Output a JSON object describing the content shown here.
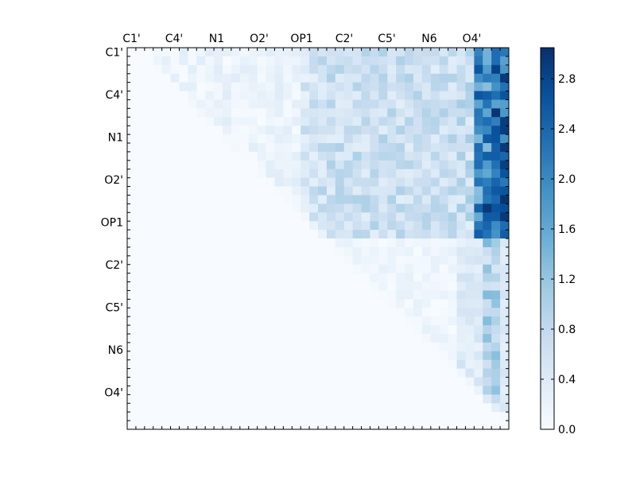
{
  "chart_data": {
    "type": "heatmap",
    "title": "",
    "xlabel": "",
    "ylabel": "",
    "grid": false,
    "x_tick_labels": [
      "C1'",
      "C4'",
      "N1",
      "O2'",
      "OP1",
      "C2'",
      "C5'",
      "N6",
      "O4'"
    ],
    "y_tick_labels": [
      "C1'",
      "C4'",
      "N1",
      "O2'",
      "OP1",
      "C2'",
      "C5'",
      "N6",
      "O4'"
    ],
    "matrix_size": 44,
    "label_every": 5,
    "colormap": "Blues",
    "colors": {
      "low": "#f7fbff",
      "high": "#08306b",
      "frame": "#000000"
    },
    "colorbar": {
      "range": [
        0.0,
        3.05
      ],
      "ticks": [
        "0.0",
        "0.4",
        "0.8",
        "1.2",
        "1.6",
        "2.0",
        "2.4",
        "2.8"
      ],
      "tick_values": [
        0.0,
        0.4,
        0.8,
        1.2,
        1.6,
        2.0,
        2.4,
        2.8
      ],
      "placement": "right"
    },
    "description": "Upper-triangular matrix of values; higher values concentrated in the rightmost columns (≈2.0–3.0) and upper-right block (rows C1'–OP1); lower-left triangle empty (0)."
  }
}
